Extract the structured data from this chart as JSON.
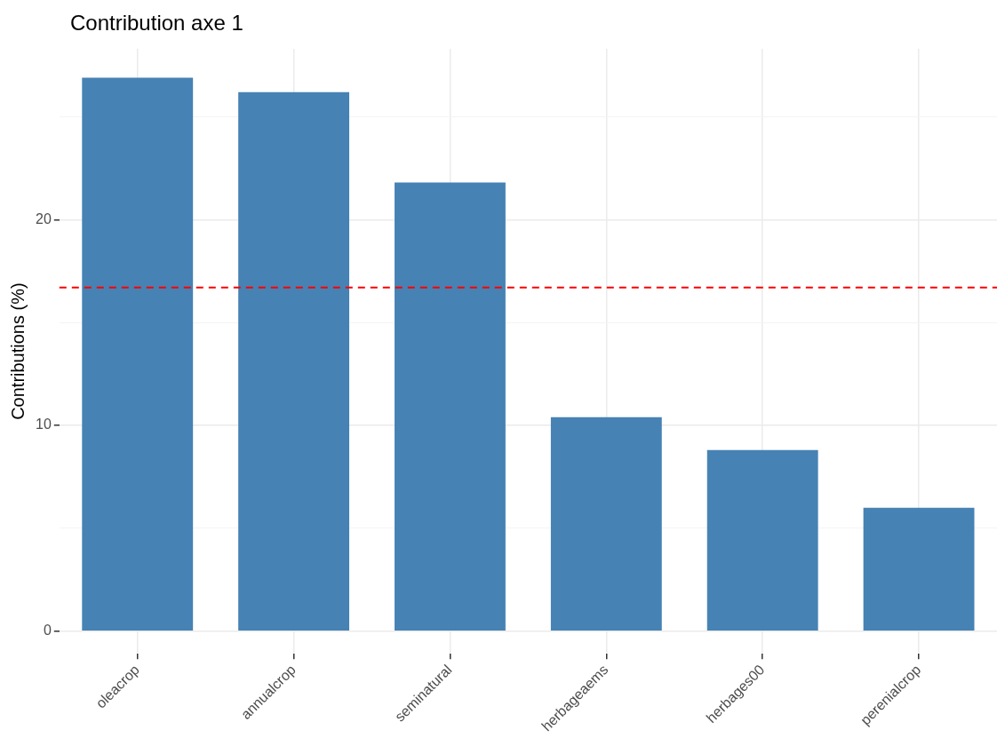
{
  "chart_data": {
    "type": "bar",
    "title": "Contribution axe 1",
    "ylabel": "Contributions (%)",
    "categories": [
      "oleacrop",
      "annualcrop",
      "seminatural",
      "herbageaems",
      "herbages00",
      "perenialcrop"
    ],
    "values": [
      26.9,
      26.2,
      21.8,
      10.4,
      8.8,
      6.0
    ],
    "color": "#4682b4",
    "ylim": [
      -1.1,
      28.3
    ],
    "yticks": [
      0,
      {
        "value": 5,
        "label": null
      },
      10,
      {
        "value": 15,
        "label": null
      },
      20,
      {
        "value": 25,
        "label": null
      }
    ],
    "ref_lines": [
      {
        "axis": "y",
        "value": 16.7,
        "label": null,
        "color": "#ff0000",
        "line_style": "dashed"
      }
    ],
    "grid": true,
    "legend": false
  }
}
